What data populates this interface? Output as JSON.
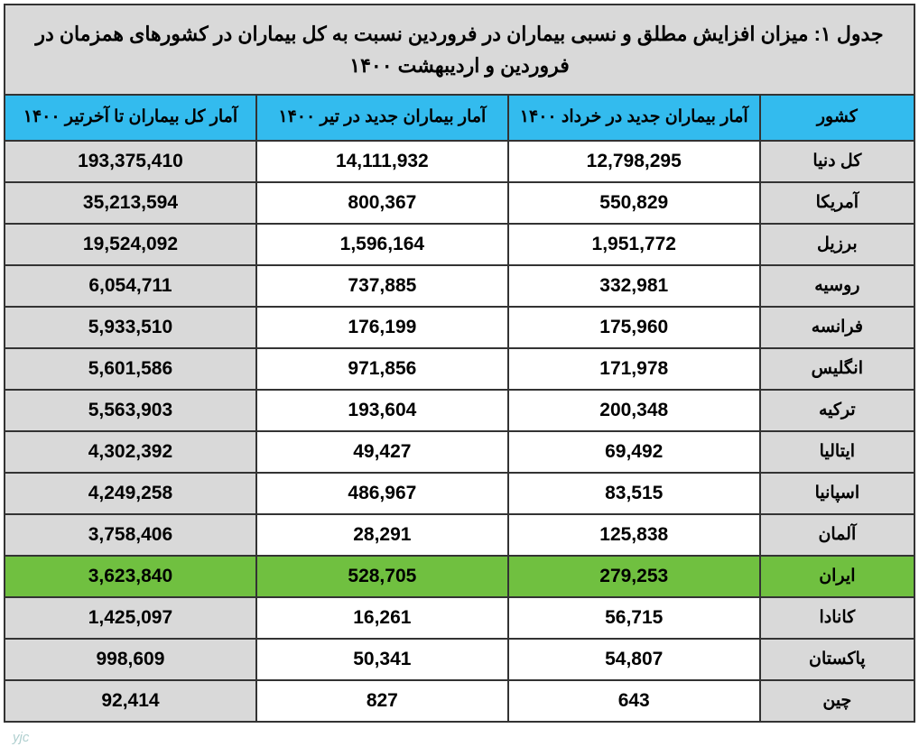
{
  "table": {
    "title": "جدول ۱: میزان افزایش مطلق و نسبی بیماران در فروردین نسبت به کل بیماران در کشورهای همزمان در فروردین و اردیبهشت ۱۴۰۰",
    "headers": {
      "country": "کشور",
      "col1": "آمار بیماران جدید در خرداد ۱۴۰۰",
      "col2": "آمار بیماران جدید در تیر ۱۴۰۰",
      "col3": "آمار کل بیماران تا آخرتیر ۱۴۰۰"
    },
    "rows": [
      {
        "country": "کل دنیا",
        "c1": "12,798,295",
        "c2": "14,111,932",
        "c3": "193,375,410",
        "highlight": false
      },
      {
        "country": "آمریکا",
        "c1": "550,829",
        "c2": "800,367",
        "c3": "35,213,594",
        "highlight": false
      },
      {
        "country": "برزیل",
        "c1": "1,951,772",
        "c2": "1,596,164",
        "c3": "19,524,092",
        "highlight": false
      },
      {
        "country": "روسیه",
        "c1": "332,981",
        "c2": "737,885",
        "c3": "6,054,711",
        "highlight": false
      },
      {
        "country": "فرانسه",
        "c1": "175,960",
        "c2": "176,199",
        "c3": "5,933,510",
        "highlight": false
      },
      {
        "country": "انگلیس",
        "c1": "171,978",
        "c2": "971,856",
        "c3": "5,601,586",
        "highlight": false
      },
      {
        "country": "ترکیه",
        "c1": "200,348",
        "c2": "193,604",
        "c3": "5,563,903",
        "highlight": false
      },
      {
        "country": "ایتالیا",
        "c1": "69,492",
        "c2": "49,427",
        "c3": "4,302,392",
        "highlight": false
      },
      {
        "country": "اسپانیا",
        "c1": "83,515",
        "c2": "486,967",
        "c3": "4,249,258",
        "highlight": false
      },
      {
        "country": "آلمان",
        "c1": "125,838",
        "c2": "28,291",
        "c3": "3,758,406",
        "highlight": false
      },
      {
        "country": "ایران",
        "c1": "279,253",
        "c2": "528,705",
        "c3": "3,623,840",
        "highlight": true
      },
      {
        "country": "کانادا",
        "c1": "56,715",
        "c2": "16,261",
        "c3": "1,425,097",
        "highlight": false
      },
      {
        "country": "پاکستان",
        "c1": "54,807",
        "c2": "50,341",
        "c3": "998,609",
        "highlight": false
      },
      {
        "country": "چین",
        "c1": "643",
        "c2": "827",
        "c3": "92,414",
        "highlight": false
      }
    ]
  },
  "watermark": "yjc"
}
